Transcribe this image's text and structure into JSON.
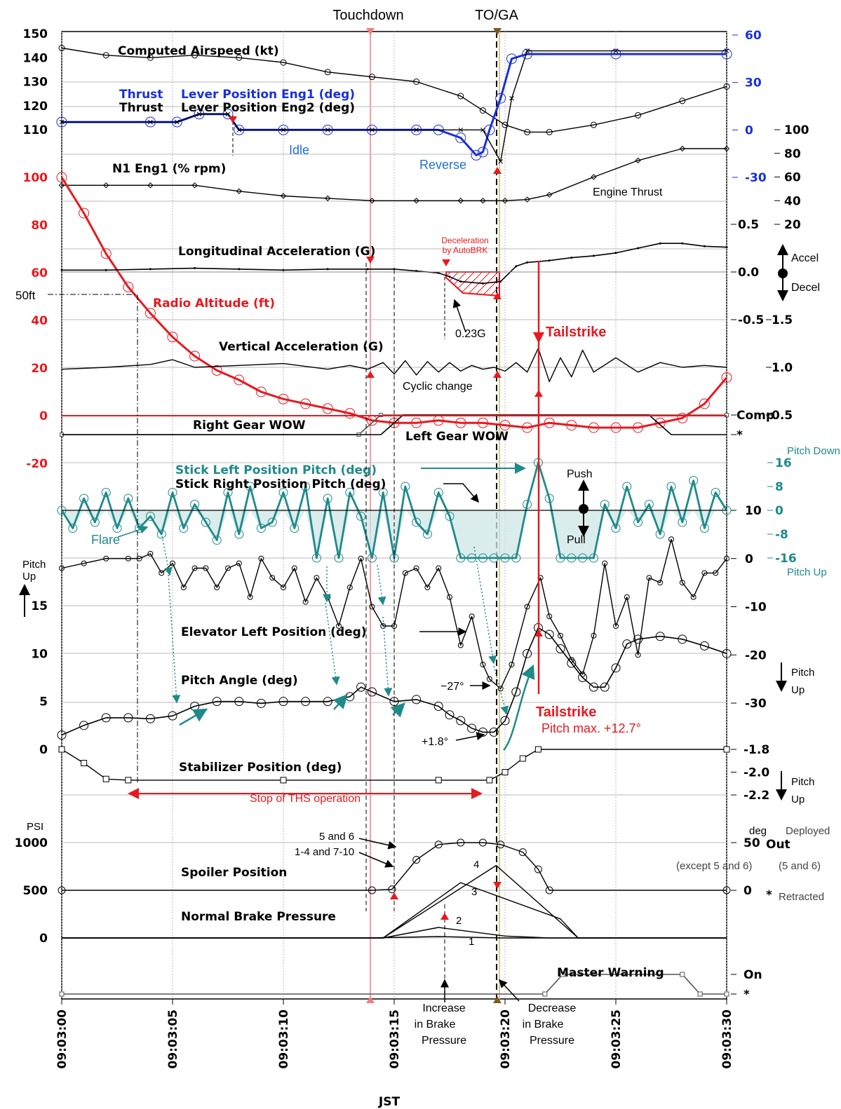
{
  "header": {
    "touchdown": "Touchdown",
    "toga": "TO/GA",
    "x_axis_title": "JST"
  },
  "colors": {
    "red": "#e8191f",
    "blue": "#1a2fdc",
    "teal": "#1f8a8a",
    "grid": "#b8b8b8"
  },
  "chart_data": {
    "type": "line",
    "x_ticks": [
      "09:03:00",
      "09:03:05",
      "09:03:10",
      "09:03:15",
      "09:03:20",
      "09:03:25",
      "09:03:30"
    ],
    "x_range": [
      0,
      30
    ],
    "events": {
      "touchdown_s": 13.8,
      "toga_s": 19.8
    },
    "axes": {
      "airspeed": {
        "ticks": [
          "150",
          "140",
          "130",
          "120",
          "110"
        ],
        "range": [
          110,
          150
        ]
      },
      "thrust_lever": {
        "ticks": [
          "60",
          "30",
          "0",
          "-30"
        ],
        "range": [
          -30,
          60
        ]
      },
      "n1": {
        "ticks": [
          "100",
          "80",
          "60",
          "40",
          "20"
        ],
        "range": [
          20,
          100
        ]
      },
      "radio_alt": {
        "ticks": [
          "100",
          "80",
          "60",
          "40",
          "20",
          "0",
          "-20"
        ],
        "range": [
          -20,
          100
        ]
      },
      "long_acc": {
        "ticks": [
          "0.5",
          "0.0",
          "-0.5"
        ],
        "range": [
          -0.5,
          0.5
        ]
      },
      "vert_acc": {
        "ticks": [
          "1.5",
          "1.0",
          "0.5"
        ],
        "range": [
          0.5,
          1.5
        ]
      },
      "gear": {
        "ticks": [
          "Comp",
          "*"
        ]
      },
      "stick": {
        "ticks": [
          "16",
          "8",
          "0",
          "-8",
          "-16"
        ],
        "range": [
          -16,
          16
        ]
      },
      "elevator": {
        "ticks": [
          "10",
          "0",
          "-10",
          "-20",
          "-30"
        ],
        "range": [
          -30,
          10
        ]
      },
      "pitch": {
        "ticks": [
          "15",
          "10",
          "5",
          "0"
        ],
        "range": [
          0,
          15
        ]
      },
      "stabilizer": {
        "ticks": [
          "-1.8",
          "-2.0",
          "-2.2"
        ],
        "range": [
          -2.2,
          -1.8
        ]
      },
      "spoiler": {
        "ticks": [
          "50",
          "0"
        ],
        "range": [
          0,
          50
        ],
        "unit": "deg",
        "hi": "Out",
        "lo": "*"
      },
      "brake": {
        "ticks": [
          "1000",
          "500",
          "0"
        ],
        "range": [
          0,
          1000
        ],
        "unit": "PSI"
      },
      "master_warning": {
        "ticks": [
          "On",
          "*"
        ]
      }
    },
    "series": [
      {
        "name": "Computed Airspeed (kt)",
        "axis": "airspeed",
        "x": [
          0,
          2,
          4,
          6,
          8,
          10,
          12,
          14,
          16,
          18,
          19,
          20,
          21,
          22,
          24,
          26,
          28,
          30
        ],
        "y": [
          144,
          141,
          140,
          141,
          140,
          138,
          134,
          132,
          130,
          124,
          118,
          112,
          109,
          109,
          112,
          116,
          122,
          128
        ]
      },
      {
        "name": "Lever Position Eng1 (deg)",
        "axis": "thrust_lever",
        "x": [
          0,
          4,
          5.2,
          6.2,
          7.5,
          8,
          10,
          12,
          14,
          16,
          17,
          18,
          18.7,
          19,
          19.3,
          19.8,
          20.3,
          21,
          25,
          30
        ],
        "y": [
          5,
          5,
          5,
          10,
          10,
          0,
          0,
          0,
          0,
          0,
          0,
          -5,
          -16,
          -14,
          0,
          20,
          45,
          48,
          48,
          48
        ]
      },
      {
        "name": "Lever Position Eng2 (deg)",
        "axis": "thrust_lever",
        "x": [
          0,
          4,
          5.2,
          6.2,
          7.5,
          8,
          10,
          12,
          14,
          16,
          18,
          19,
          19.8,
          20.3,
          21,
          25,
          30
        ],
        "y": [
          5,
          5,
          5,
          10,
          10,
          0,
          0,
          0,
          0,
          0,
          0,
          0,
          -20,
          20,
          50,
          50,
          50
        ]
      },
      {
        "name": "N1 Eng1 (% rpm)",
        "axis": "n1",
        "x": [
          0,
          2,
          4,
          6,
          8,
          10,
          12,
          14,
          16,
          18,
          19,
          20,
          21,
          22,
          24,
          26,
          28,
          30
        ],
        "y": [
          53,
          53,
          53,
          53,
          48,
          44,
          42,
          40,
          40,
          40,
          40,
          40,
          41,
          45,
          60,
          74,
          84,
          84
        ]
      },
      {
        "name": "Radio Altitude (ft)",
        "axis": "radio_alt",
        "x": [
          0,
          1,
          2,
          3,
          4,
          5,
          6,
          7,
          8,
          9,
          10,
          11,
          12,
          13,
          14,
          15,
          16,
          17,
          18,
          19,
          20,
          21,
          22,
          23,
          24,
          25,
          26,
          27,
          28,
          29,
          30
        ],
        "y": [
          100,
          85,
          68,
          54,
          43,
          33,
          25,
          19,
          15,
          10,
          7,
          5,
          3,
          1,
          -2,
          -3,
          -3,
          -2,
          -3,
          -3,
          -4,
          -5,
          -3,
          -4,
          -5,
          -5,
          -5,
          -3,
          -1,
          5,
          16
        ]
      },
      {
        "name": "Longitudinal Acceleration (G)",
        "axis": "long_acc",
        "x": [
          0,
          2,
          4,
          6,
          8,
          10,
          12,
          13.8,
          15,
          16,
          17,
          17.5,
          18,
          19,
          19.8,
          20.5,
          21,
          22,
          23,
          24,
          25,
          26,
          27,
          28,
          29,
          30
        ],
        "y": [
          0.02,
          0.02,
          0.03,
          0.04,
          0.03,
          0.02,
          0.03,
          0.03,
          0.03,
          0.01,
          -0.01,
          -0.05,
          -0.1,
          -0.12,
          -0.1,
          0.06,
          0.1,
          0.12,
          0.15,
          0.17,
          0.2,
          0.25,
          0.3,
          0.3,
          0.27,
          0.26
        ]
      },
      {
        "name": "Vertical Acceleration (G)",
        "axis": "vert_acc",
        "x": [
          0,
          2,
          4,
          5,
          6,
          8,
          10,
          12,
          13,
          13.8,
          14.5,
          15,
          15.5,
          16,
          16.5,
          17,
          17.5,
          18,
          18.5,
          19,
          19.5,
          20,
          20.5,
          21,
          21.5,
          22,
          22.5,
          23,
          23.5,
          24,
          25,
          26,
          27,
          28,
          29,
          30
        ],
        "y": [
          0.98,
          1.0,
          1.03,
          1.08,
          1.0,
          1.02,
          1.04,
          0.98,
          1.02,
          0.98,
          1.05,
          0.93,
          1.07,
          0.92,
          1.06,
          0.95,
          1.05,
          0.96,
          1.02,
          0.98,
          1.0,
          0.96,
          1.05,
          0.95,
          1.2,
          0.85,
          1.1,
          0.9,
          1.18,
          0.95,
          1.1,
          0.95,
          1.05,
          1.0,
          1.02,
          1.0
        ]
      },
      {
        "name": "Right Gear WOW",
        "axis": "gear",
        "x": [
          0,
          13.4,
          14.4,
          30
        ],
        "y": [
          0,
          0,
          1,
          1
        ]
      },
      {
        "name": "Left Gear WOW",
        "axis": "gear",
        "x": [
          0,
          14.4,
          15.4,
          26.5,
          27.5,
          30
        ],
        "y": [
          0,
          0,
          1,
          1,
          0,
          0
        ]
      },
      {
        "name": "Stick Left Position Pitch (deg)",
        "axis": "stick",
        "x": [
          0,
          0.5,
          1,
          1.5,
          2,
          2.5,
          3,
          3.5,
          4,
          4.5,
          5,
          5.5,
          6,
          6.5,
          7,
          7.5,
          8,
          8.5,
          9,
          9.5,
          10,
          10.5,
          11,
          11.5,
          12,
          12.5,
          13,
          13.5,
          14,
          14.5,
          15,
          15.5,
          16,
          16.5,
          17,
          17.5,
          18,
          18.5,
          19,
          19.5,
          20,
          20.5,
          21,
          21.5,
          22,
          22.5,
          23,
          23.5,
          24,
          24.5,
          25,
          25.5,
          26,
          26.5,
          27,
          27.5,
          28,
          28.5,
          29,
          29.5,
          30
        ],
        "y": [
          0,
          -6,
          4,
          -4,
          6,
          -6,
          4,
          -6,
          -2,
          -8,
          6,
          -6,
          2,
          -4,
          -10,
          6,
          -8,
          8,
          -6,
          -4,
          6,
          -6,
          8,
          -16,
          4,
          -16,
          6,
          -2,
          -16,
          6,
          -16,
          8,
          -4,
          -8,
          6,
          -2,
          -16,
          -16,
          -16,
          -16,
          -16,
          -16,
          2,
          16,
          4,
          -16,
          -16,
          -16,
          -16,
          2,
          -6,
          8,
          -4,
          2,
          -8,
          8,
          -4,
          10,
          -6,
          6,
          0
        ]
      },
      {
        "name": "Stick Right Position Pitch (deg)",
        "axis": "stick",
        "x": [
          0,
          15,
          17,
          19,
          20,
          21,
          22,
          30
        ],
        "y": [
          0,
          0,
          0,
          0,
          0,
          0,
          0,
          0
        ]
      },
      {
        "name": "Elevator Left Position (deg)",
        "axis": "elevator",
        "x": [
          0,
          1,
          2,
          3,
          3.5,
          4,
          4.5,
          5,
          5.5,
          6,
          6.5,
          7,
          7.5,
          8,
          8.5,
          9,
          9.5,
          10,
          10.5,
          11,
          11.5,
          12,
          12.5,
          13,
          13.5,
          14,
          14.5,
          15,
          15.5,
          16,
          16.5,
          17,
          17.5,
          18,
          18.5,
          19,
          19.3,
          19.8,
          20.3,
          21,
          21.6,
          22,
          22.5,
          23,
          23.5,
          24,
          24.5,
          25,
          25.5,
          26,
          26.5,
          27,
          27.5,
          28,
          28.5,
          29,
          29.5,
          30
        ],
        "y": [
          -2,
          -1,
          0,
          0,
          0,
          1,
          -3,
          -1,
          -6,
          -2,
          -2,
          -6,
          -2,
          -1,
          -8,
          0,
          -4,
          -6,
          -2,
          -9,
          -4,
          -8,
          -14,
          -6,
          0,
          -10,
          -14,
          -14,
          -3,
          -2,
          -6,
          -2,
          -8,
          -18,
          -12,
          -22,
          -25,
          -27,
          -22,
          -10,
          -4,
          -12,
          -16,
          -21,
          -24,
          -16,
          -1,
          -14,
          -8,
          -20,
          -4,
          -5,
          4,
          -5,
          -8,
          -3,
          -3,
          0
        ]
      },
      {
        "name": "Pitch Angle (deg)",
        "axis": "pitch",
        "x": [
          0,
          1,
          2,
          3,
          4,
          5,
          6,
          7,
          8,
          9,
          10,
          11,
          12,
          13,
          13.5,
          14,
          15,
          16,
          17,
          17.5,
          18,
          18.5,
          19,
          19.5,
          20,
          20.5,
          21,
          21.5,
          22,
          22.5,
          23,
          23.5,
          24,
          24.5,
          25,
          25.5,
          26,
          27,
          28,
          29,
          30
        ],
        "y": [
          1.5,
          2.5,
          3.3,
          3.3,
          3.2,
          3.5,
          4.5,
          5,
          5,
          4.8,
          5,
          5,
          5,
          5.5,
          6.5,
          6,
          5,
          5.2,
          4.5,
          3.6,
          3.0,
          2.2,
          1.8,
          1.8,
          3,
          6,
          10,
          12.7,
          12,
          10.5,
          9,
          7.5,
          6.5,
          6.5,
          8.5,
          11,
          11.5,
          11.8,
          11.5,
          10.8,
          10
        ]
      },
      {
        "name": "Stabilizer Position (deg)",
        "axis": "stabilizer",
        "x": [
          0,
          1,
          2,
          3,
          10,
          17,
          19.3,
          20,
          20.8,
          21.5,
          30
        ],
        "y": [
          -1.8,
          -1.92,
          -2.06,
          -2.07,
          -2.07,
          -2.07,
          -2.07,
          -2.0,
          -1.88,
          -1.8,
          -1.8
        ]
      },
      {
        "name": "Spoiler Position",
        "axis": "spoiler",
        "x": [
          0,
          14,
          14.9,
          16,
          17,
          18,
          19,
          19.8,
          20.8,
          21.5,
          22,
          30
        ],
        "y": [
          0,
          0,
          1,
          32,
          48,
          50,
          50,
          48,
          40,
          22,
          0,
          0
        ]
      },
      {
        "name": "Normal Brake Pressure 1",
        "axis": "brake",
        "x": [
          0,
          13.8,
          17,
          19.8,
          22,
          30
        ],
        "y": [
          0,
          0,
          15,
          0,
          0,
          0
        ]
      },
      {
        "name": "Normal Brake Pressure 2",
        "axis": "brake",
        "x": [
          0,
          14.5,
          17,
          20,
          22,
          30
        ],
        "y": [
          0,
          0,
          110,
          20,
          0,
          0
        ]
      },
      {
        "name": "Normal Brake Pressure 3",
        "axis": "brake",
        "x": [
          0,
          14.5,
          18,
          22.5,
          23.3,
          30
        ],
        "y": [
          0,
          0,
          580,
          200,
          0,
          0
        ]
      },
      {
        "name": "Normal Brake Pressure 4",
        "axis": "brake",
        "x": [
          0,
          14.5,
          19.6,
          23.3,
          30
        ],
        "y": [
          0,
          0,
          760,
          0,
          0
        ]
      },
      {
        "name": "Master Warning",
        "axis": "master_warning",
        "x": [
          0,
          21.8,
          22.6,
          28,
          28.8,
          30
        ],
        "y": [
          0,
          0,
          1,
          1,
          0,
          0
        ]
      }
    ]
  },
  "annotations": {
    "idle": "Idle",
    "reverse": "Reverse",
    "engine_thrust": "Engine Thrust",
    "decel_autobrk_1": "Deceleration",
    "decel_autobrk_2": "by AutoBRK",
    "g023": "0.23G",
    "accel": "Accel",
    "decel": "Decel",
    "ft50": "50ft",
    "tailstrike": "Tailstrike",
    "cyclic_change": "Cyclic change",
    "pitch_down": "Pitch Down",
    "pitch_up": "Pitch Up",
    "push": "Push",
    "pull": "Pull",
    "flare": "Flare",
    "pitch_up_left_1": "Pitch",
    "pitch_up_left_2": "Up",
    "pitch_up_right_1": "Pitch",
    "pitch_up_right_2": "Up",
    "minus27": "−27°",
    "plus18": "+1.8°",
    "pitch_max": "Pitch max. +12.7°",
    "stop_ths": "Stop of THS operation",
    "thrust_word_1": "Thrust",
    "thrust_word_2": "Thrust",
    "five_and_six": "5 and 6",
    "one_four_seven_ten": "1-4 and 7-10",
    "except_5_6": "(except 5 and 6)",
    "deployed": "Deployed",
    "five_and_six_paren": "(5 and 6)",
    "retracted": "Retracted",
    "brake_num_1": "1",
    "brake_num_2": "2",
    "brake_num_3": "3",
    "brake_num_4": "4",
    "increase_1": "Increase",
    "increase_2": "in Brake",
    "increase_3": "Pressure",
    "decrease_1": "Decrease",
    "decrease_2": "in Brake",
    "decrease_3": "Pressure"
  }
}
